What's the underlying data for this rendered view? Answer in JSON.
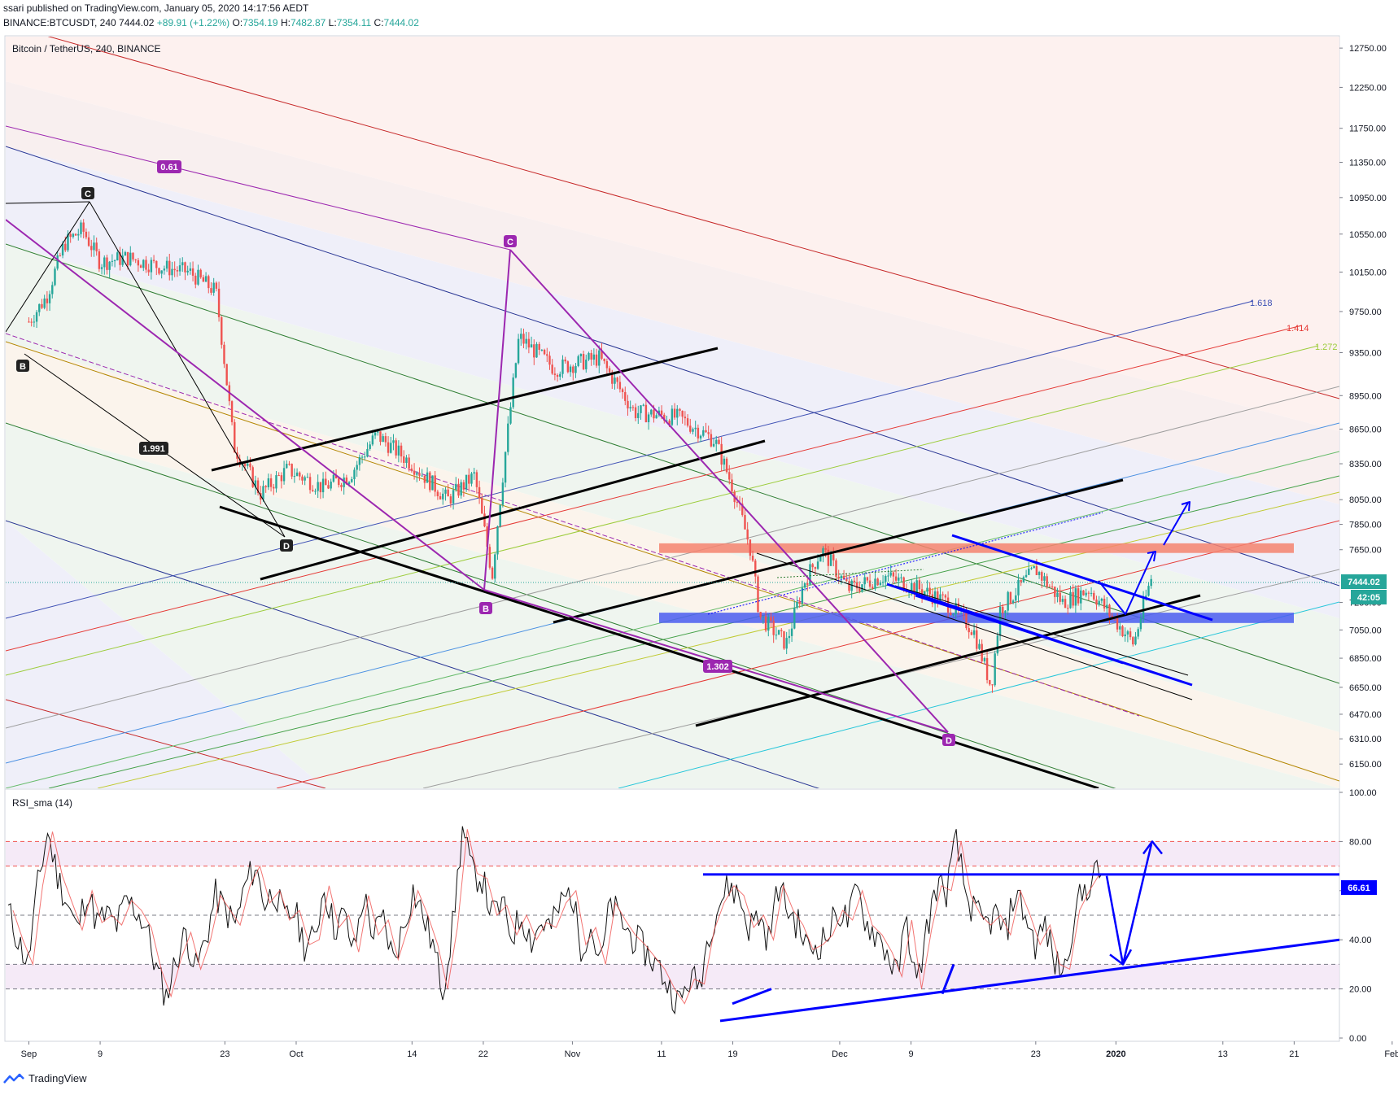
{
  "header": {
    "published_line": "ssari published on TradingView.com, January 05, 2020 14:17:56 AEDT",
    "symbol": "BINANCE:BTCUSDT, 240",
    "last": "7444.02",
    "change": "+89.91 (+1.22%)",
    "o_label": "O:",
    "o_value": "7354.19",
    "h_label": "H:",
    "h_value": "7482.87",
    "l_label": "L:",
    "l_value": "7354.11",
    "c_label": "C:",
    "c_value": "7444.02"
  },
  "main_pane": {
    "title": "Bitcoin / TetherUS, 240, BINANCE",
    "price_badge": "7444.02",
    "countdown_badge": "42:05"
  },
  "rsi_pane": {
    "title": "RSI_sma (14)",
    "value_badge": "66.61"
  },
  "fib_labels": {
    "l1618": "1.618",
    "l1414": "1.414",
    "l1272": "1.272"
  },
  "pattern_labels": {
    "black": {
      "b": "B",
      "c": "C",
      "d": "D",
      "ratio": "1.991"
    },
    "purple": {
      "b": "B",
      "c": "C",
      "d": "D",
      "ratio_xb": "0.61",
      "ratio_bd": "1.302"
    }
  },
  "footer": {
    "brand": "TradingView"
  },
  "colors": {
    "up": "#26a69a",
    "down": "#ef5350",
    "purple": "#9c27b0",
    "blue_drawing": "#0000ff",
    "red_zone": "#f4826f",
    "blue_zone": "#4a5cf0"
  },
  "chart_data": [
    {
      "type": "candlestick",
      "title": "Bitcoin / TetherUS, 240, BINANCE",
      "y_scale": "log",
      "ylim": [
        6000,
        12900
      ],
      "yticks": [
        12750,
        12250,
        11750,
        11350,
        10950,
        10550,
        10150,
        9750,
        9350,
        8950,
        8650,
        8350,
        8050,
        7850,
        7650,
        7250,
        7050,
        6850,
        6650,
        6470,
        6310,
        6150
      ],
      "xticks": [
        "Sep",
        "9",
        "23",
        "Oct",
        "14",
        "22",
        "Nov",
        "11",
        "19",
        "Dec",
        "9",
        "23",
        "2020",
        "13",
        "21",
        "Feb"
      ],
      "last_price": 7444.02,
      "price_path": [
        [
          "2019-09-01",
          9650
        ],
        [
          "2019-09-03",
          9900
        ],
        [
          "2019-09-05",
          10450
        ],
        [
          "2019-09-07",
          10600
        ],
        [
          "2019-09-09",
          10250
        ],
        [
          "2019-09-12",
          10300
        ],
        [
          "2019-09-16",
          10200
        ],
        [
          "2019-09-19",
          10150
        ],
        [
          "2019-09-22",
          9950
        ],
        [
          "2019-09-24",
          8500
        ],
        [
          "2019-09-27",
          8100
        ],
        [
          "2019-09-30",
          8300
        ],
        [
          "2019-10-04",
          8150
        ],
        [
          "2019-10-07",
          8250
        ],
        [
          "2019-10-10",
          8600
        ],
        [
          "2019-10-14",
          8350
        ],
        [
          "2019-10-18",
          8050
        ],
        [
          "2019-10-21",
          8250
        ],
        [
          "2019-10-23",
          7450
        ],
        [
          "2019-10-25",
          8800
        ],
        [
          "2019-10-26",
          9500
        ],
        [
          "2019-10-30",
          9200
        ],
        [
          "2019-11-04",
          9300
        ],
        [
          "2019-11-08",
          8800
        ],
        [
          "2019-11-13",
          8750
        ],
        [
          "2019-11-17",
          8550
        ],
        [
          "2019-11-19",
          8150
        ],
        [
          "2019-11-21",
          7650
        ],
        [
          "2019-11-22",
          7150
        ],
        [
          "2019-11-25",
          6950
        ],
        [
          "2019-11-27",
          7400
        ],
        [
          "2019-11-29",
          7650
        ],
        [
          "2019-12-02",
          7350
        ],
        [
          "2019-12-06",
          7450
        ],
        [
          "2019-12-10",
          7350
        ],
        [
          "2019-12-13",
          7250
        ],
        [
          "2019-12-16",
          7050
        ],
        [
          "2019-12-18",
          6650
        ],
        [
          "2019-12-19",
          7200
        ],
        [
          "2019-12-23",
          7500
        ],
        [
          "2019-12-26",
          7250
        ],
        [
          "2019-12-29",
          7350
        ],
        [
          "2020-01-03",
          6950
        ],
        [
          "2020-01-05",
          7444
        ]
      ],
      "horizontal_zones": [
        {
          "color": "#f4826f",
          "from": 7625,
          "to": 7700
        },
        {
          "color": "#4a5cf0",
          "from": 7100,
          "to": 7175
        }
      ]
    },
    {
      "type": "line",
      "title": "RSI_sma (14)",
      "ylim": [
        0,
        100
      ],
      "yticks": [
        100,
        80,
        60,
        40,
        20,
        0
      ],
      "bands": [
        80,
        70,
        50,
        30,
        20
      ],
      "last_value": 66.61,
      "series": [
        {
          "values": [
            52,
            40,
            30,
            62,
            84,
            66,
            55,
            44,
            60,
            47,
            50,
            46,
            56,
            52,
            45,
            28,
            17,
            32,
            43,
            28,
            40,
            58,
            52,
            46,
            62,
            70,
            55,
            60,
            48,
            52,
            38,
            40,
            62,
            45,
            50,
            35,
            58,
            42,
            48,
            32,
            45,
            60,
            50,
            38,
            20,
            45,
            85,
            67,
            65,
            50,
            54,
            42,
            50,
            40,
            47,
            45,
            55,
            60,
            38,
            45,
            30,
            55,
            48,
            42,
            38,
            33,
            28,
            20,
            14,
            24,
            22,
            44,
            55,
            62,
            58,
            45,
            50,
            40,
            62,
            52,
            46,
            36,
            38,
            42,
            52,
            48,
            60,
            46,
            42,
            35,
            25,
            48,
            20,
            44,
            62,
            60,
            80,
            58,
            50,
            46,
            50,
            42,
            60,
            50,
            38,
            46,
            30,
            28,
            52,
            60,
            66.6
          ]
        }
      ]
    }
  ]
}
